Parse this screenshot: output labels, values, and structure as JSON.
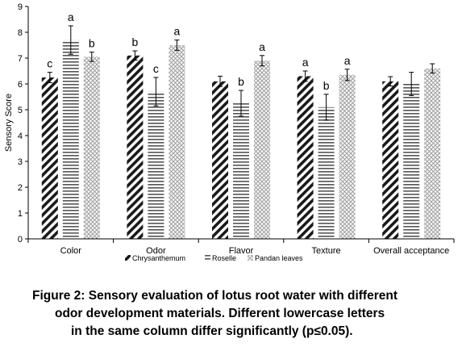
{
  "chart_data": {
    "type": "bar",
    "categories": [
      "Color",
      "Odor",
      "Flavor",
      "Texture",
      "Overall acceptance"
    ],
    "ylabel": "Sensory Score",
    "xlabel": "",
    "ylim": [
      0,
      9
    ],
    "yticks": [
      0,
      1,
      2,
      3,
      4,
      5,
      6,
      7,
      8,
      9
    ],
    "grid": false,
    "legend_position": "bottom",
    "series": [
      {
        "name": "Chrysanthemum",
        "pattern": "diagonal-stripes",
        "values": [
          6.25,
          7.1,
          6.1,
          6.3,
          6.1
        ],
        "errors": [
          0.2,
          0.18,
          0.2,
          0.2,
          0.18
        ],
        "letters": [
          "c",
          "b",
          "",
          "a",
          ""
        ]
      },
      {
        "name": "Roselle",
        "pattern": "horizontal-stripes",
        "values": [
          7.7,
          5.7,
          5.25,
          5.1,
          6.0
        ],
        "errors": [
          0.55,
          0.55,
          0.5,
          0.5,
          0.45
        ],
        "letters": [
          "a",
          "c",
          "b",
          "b",
          ""
        ]
      },
      {
        "name": "Pandan leaves",
        "pattern": "crosshatch",
        "values": [
          7.05,
          7.5,
          6.9,
          6.35,
          6.6
        ],
        "errors": [
          0.18,
          0.2,
          0.2,
          0.22,
          0.18
        ],
        "letters": [
          "b",
          "a",
          "a",
          "a",
          ""
        ]
      }
    ]
  },
  "caption": {
    "line1": "Figure 2: Sensory evaluation of lotus root water with different",
    "line2": "odor development materials. Different lowercase letters",
    "line3": "in the same column differ significantly (p≤0.05)."
  }
}
